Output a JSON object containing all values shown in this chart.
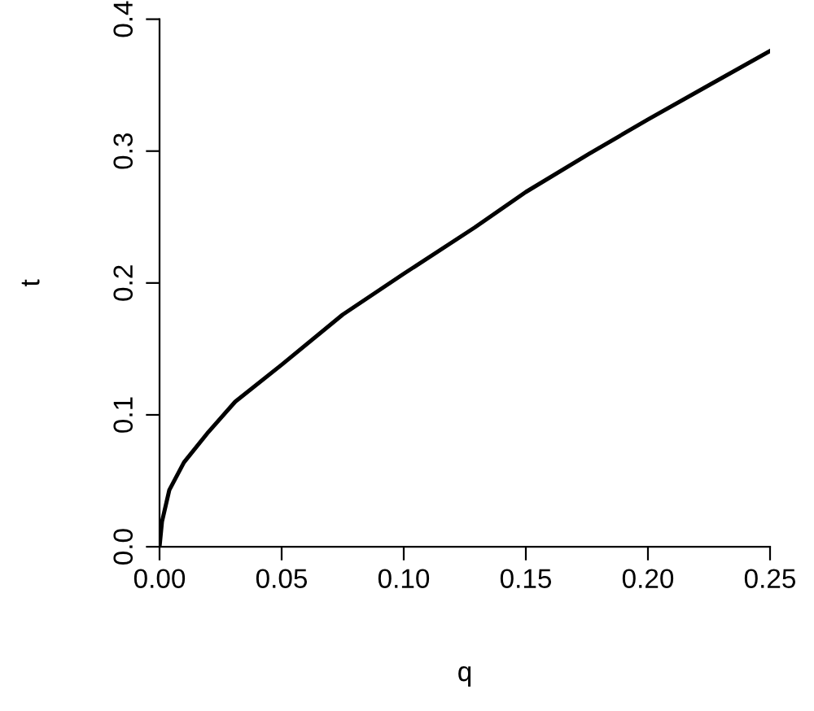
{
  "chart_data": {
    "type": "line",
    "xlabel": "q",
    "ylabel": "t",
    "x": [
      0,
      0.001,
      0.004,
      0.01,
      0.02,
      0.031,
      0.05,
      0.075,
      0.1,
      0.129,
      0.15,
      0.176,
      0.2,
      0.226,
      0.25
    ],
    "series": [
      {
        "color": "#000000",
        "values": [
          0,
          0.019,
          0.043,
          0.064,
          0.087,
          0.11,
          0.138,
          0.176,
          0.207,
          0.242,
          0.269,
          0.298,
          0.324,
          0.351,
          0.376
        ]
      }
    ],
    "xlim": [
      0,
      0.25
    ],
    "ylim": [
      0,
      0.4
    ],
    "xticks": [
      {
        "value": 0,
        "label": "0.00"
      },
      0.05,
      {
        "value": 0.1,
        "label": "0.10"
      },
      0.15,
      {
        "value": 0.2,
        "label": "0.20"
      },
      0.25
    ],
    "yticks": [
      {
        "value": 0,
        "label": "0.0"
      },
      0.1,
      0.2,
      0.3,
      0.4
    ],
    "marker": "none",
    "line_style": "solid"
  }
}
